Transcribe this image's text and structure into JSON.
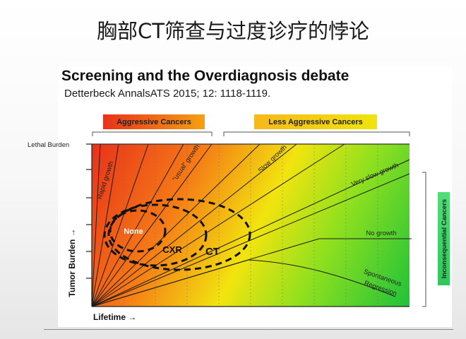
{
  "slide": {
    "title": "胸部CT筛查与过度诊疗的悖论"
  },
  "figure": {
    "title": "Screening and the Overdiagnosis debate",
    "citation": "Detterbeck AnnalsATS 2015; 12: 1118-1119.",
    "groups": {
      "aggressive": "Aggressive Cancers",
      "less_aggressive": "Less Aggressive Cancers",
      "inconsequential": "Inconsequential Cancers"
    },
    "axes": {
      "y_label": "Tumor Burden →",
      "x_label": "Lifetime →",
      "lethal_label": "Lethal Burden"
    },
    "growth_curves": {
      "rapid": "Rapid growth",
      "usual": "“usual” growth",
      "slow": "Slow growth",
      "very_slow": "Very slow growth",
      "none": "No growth",
      "regression_1": "Spontaneous",
      "regression_2": "Regression"
    },
    "detection_zones": {
      "none": "None",
      "cxr": "CXR",
      "ct": "CT"
    },
    "colors": {
      "aggressive_red": "#e8311a",
      "mid_yellow": "#f2e40f",
      "safe_green": "#1fc23a",
      "inconsequential_green": "#3fd46a"
    }
  }
}
